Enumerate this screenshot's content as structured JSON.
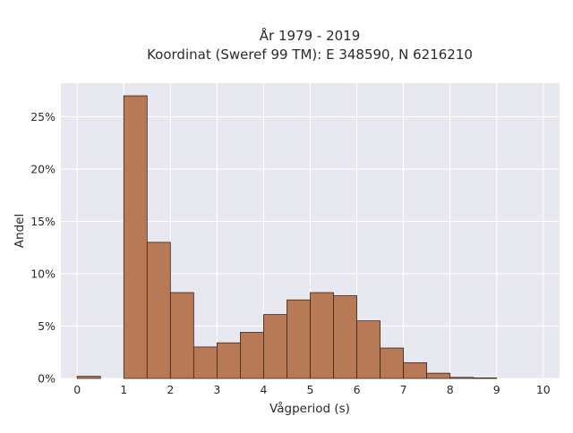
{
  "chart_data": {
    "type": "bar",
    "title_line1": "År 1979 - 2019",
    "title_line2": "Koordinat (Sweref 99 TM): E 348590, N 6216210",
    "xlabel": "Vågperiod (s)",
    "ylabel": "Andel",
    "bin_width": 0.5,
    "bin_starts": [
      0,
      0.5,
      1,
      1.5,
      2,
      2.5,
      3,
      3.5,
      4,
      4.5,
      5,
      5.5,
      6,
      6.5,
      7,
      7.5,
      8,
      8.5,
      9,
      9.5
    ],
    "values": [
      0.2,
      0,
      27.0,
      13.0,
      8.2,
      3.0,
      3.4,
      4.4,
      6.1,
      7.5,
      8.2,
      7.9,
      5.5,
      2.9,
      1.5,
      0.5,
      0.1,
      0.05,
      0,
      0
    ],
    "xlim": [
      -0.35,
      10.35
    ],
    "ylim": [
      0,
      28.2
    ],
    "x_ticks": [
      0,
      1,
      2,
      3,
      4,
      5,
      6,
      7,
      8,
      9,
      10
    ],
    "y_ticks": [
      0,
      5,
      10,
      15,
      20,
      25
    ],
    "y_tick_labels": [
      "0%",
      "5%",
      "10%",
      "15%",
      "20%",
      "25%"
    ],
    "bar_color": "#b87a56",
    "bar_edge_color": "#3d2418",
    "plot_bg_color": "#e8e8f0",
    "grid": true,
    "legend": false
  }
}
